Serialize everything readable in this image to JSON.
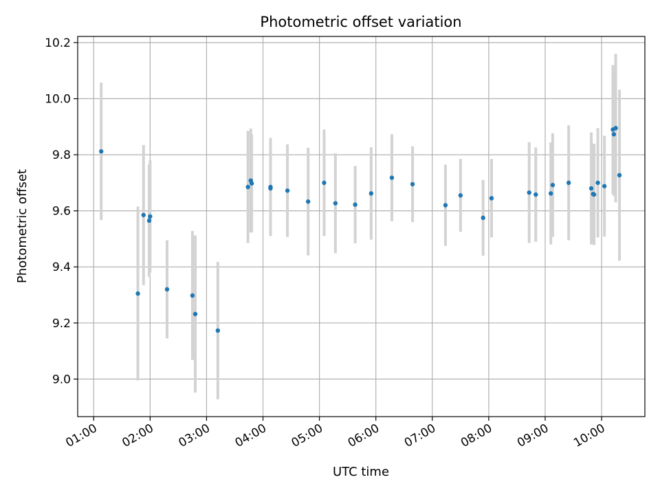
{
  "chart_data": {
    "type": "scatter",
    "title": "Photometric offset variation",
    "xlabel": "UTC time",
    "ylabel": "Photometric offset",
    "x_type": "time",
    "x_ticks": [
      "01:00",
      "02:00",
      "03:00",
      "04:00",
      "05:00",
      "06:00",
      "07:00",
      "08:00",
      "09:00",
      "10:00"
    ],
    "y_ticks": [
      "9.0",
      "9.2",
      "9.4",
      "9.6",
      "9.8",
      "10.0",
      "10.2"
    ],
    "xlim": [
      "00:43",
      "10:46"
    ],
    "ylim": [
      8.866,
      10.222
    ],
    "grid": true,
    "colors": {
      "points": "#1f77b4",
      "errorbars": "#d3d3d3",
      "grid": "#b0b0b0"
    },
    "points": [
      {
        "x": "01:08",
        "y": 9.812,
        "yerr": 0.245
      },
      {
        "x": "01:47",
        "y": 9.305,
        "yerr": 0.31
      },
      {
        "x": "01:53",
        "y": 9.585,
        "yerr": 0.25
      },
      {
        "x": "01:59",
        "y": 9.565,
        "yerr": 0.2
      },
      {
        "x": "02:00",
        "y": 9.58,
        "yerr": 0.2
      },
      {
        "x": "02:18",
        "y": 9.32,
        "yerr": 0.175
      },
      {
        "x": "02:45",
        "y": 9.298,
        "yerr": 0.23
      },
      {
        "x": "02:48",
        "y": 9.232,
        "yerr": 0.28
      },
      {
        "x": "03:12",
        "y": 9.173,
        "yerr": 0.245
      },
      {
        "x": "03:44",
        "y": 9.685,
        "yerr": 0.2
      },
      {
        "x": "03:47",
        "y": 9.708,
        "yerr": 0.185
      },
      {
        "x": "03:48",
        "y": 9.698,
        "yerr": 0.175
      },
      {
        "x": "04:08",
        "y": 9.685,
        "yerr": 0.175
      },
      {
        "x": "04:08",
        "y": 9.68,
        "yerr": 0.17
      },
      {
        "x": "04:26",
        "y": 9.672,
        "yerr": 0.165
      },
      {
        "x": "04:48",
        "y": 9.633,
        "yerr": 0.192
      },
      {
        "x": "05:05",
        "y": 9.7,
        "yerr": 0.19
      },
      {
        "x": "05:17",
        "y": 9.627,
        "yerr": 0.178
      },
      {
        "x": "05:38",
        "y": 9.622,
        "yerr": 0.138
      },
      {
        "x": "05:55",
        "y": 9.662,
        "yerr": 0.165
      },
      {
        "x": "06:17",
        "y": 9.718,
        "yerr": 0.155
      },
      {
        "x": "06:39",
        "y": 9.695,
        "yerr": 0.135
      },
      {
        "x": "07:14",
        "y": 9.62,
        "yerr": 0.145
      },
      {
        "x": "07:30",
        "y": 9.655,
        "yerr": 0.13
      },
      {
        "x": "07:54",
        "y": 9.575,
        "yerr": 0.135
      },
      {
        "x": "08:03",
        "y": 9.645,
        "yerr": 0.14
      },
      {
        "x": "08:43",
        "y": 9.665,
        "yerr": 0.18
      },
      {
        "x": "08:50",
        "y": 9.658,
        "yerr": 0.168
      },
      {
        "x": "09:06",
        "y": 9.662,
        "yerr": 0.182
      },
      {
        "x": "09:08",
        "y": 9.692,
        "yerr": 0.185
      },
      {
        "x": "09:25",
        "y": 9.7,
        "yerr": 0.205
      },
      {
        "x": "09:49",
        "y": 9.68,
        "yerr": 0.2
      },
      {
        "x": "09:51",
        "y": 9.66,
        "yerr": 0.18
      },
      {
        "x": "09:52",
        "y": 9.658,
        "yerr": 0.18
      },
      {
        "x": "09:56",
        "y": 9.7,
        "yerr": 0.195
      },
      {
        "x": "10:03",
        "y": 9.688,
        "yerr": 0.18
      },
      {
        "x": "10:12",
        "y": 9.89,
        "yerr": 0.23
      },
      {
        "x": "10:13",
        "y": 9.873,
        "yerr": 0.22
      },
      {
        "x": "10:15",
        "y": 9.895,
        "yerr": 0.265
      },
      {
        "x": "10:19",
        "y": 9.727,
        "yerr": 0.305
      }
    ]
  }
}
